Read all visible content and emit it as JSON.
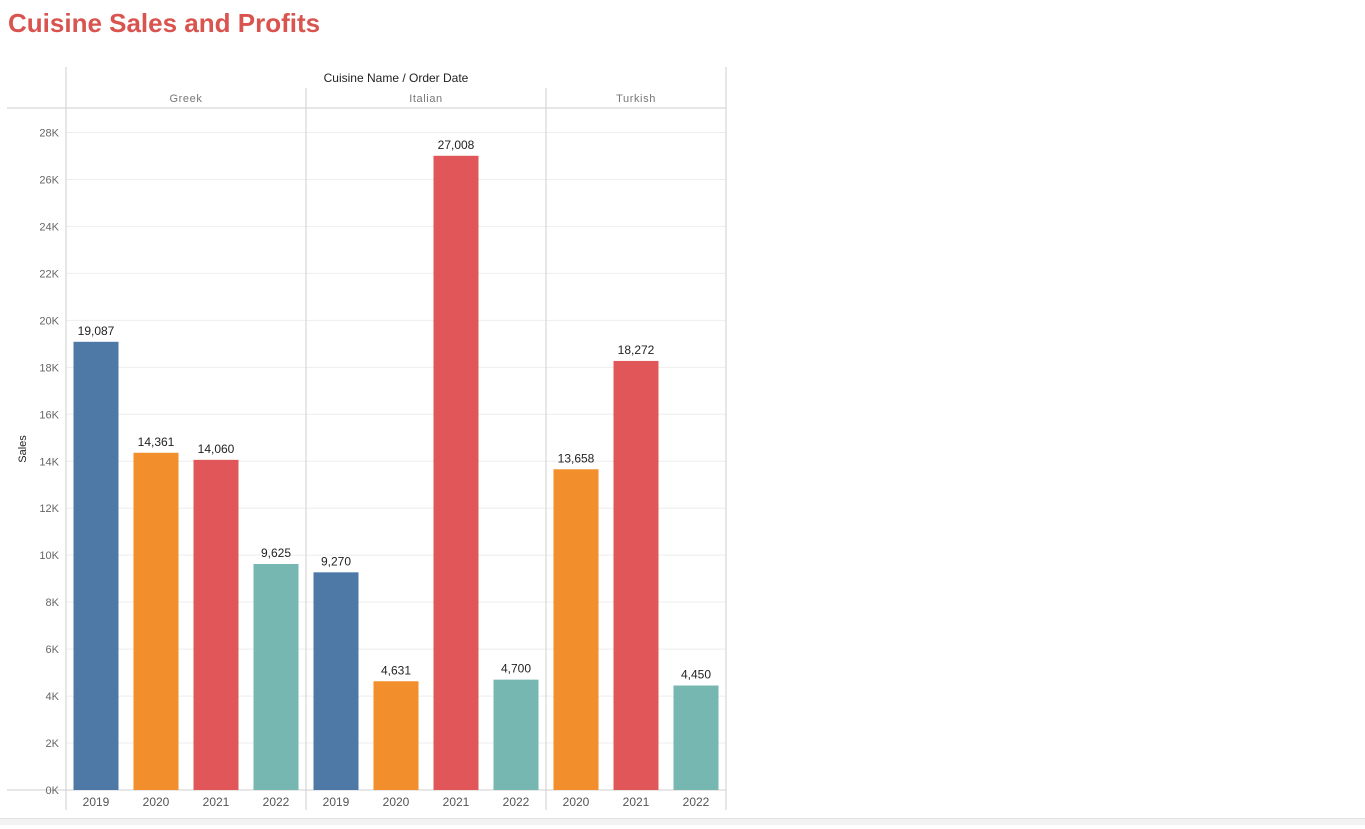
{
  "page": {
    "title": "Cuisine Sales and Profits"
  },
  "chart_data": {
    "type": "bar",
    "title": "Cuisine Sales and Profits",
    "column_header": "Cuisine Name / Order Date",
    "ylabel": "Sales",
    "xlabel": "",
    "ylim": [
      0,
      28000
    ],
    "yticks": [
      0,
      2000,
      4000,
      6000,
      8000,
      10000,
      12000,
      14000,
      16000,
      18000,
      20000,
      22000,
      24000,
      26000,
      28000
    ],
    "ytick_labels": [
      "0K",
      "2K",
      "4K",
      "6K",
      "8K",
      "10K",
      "12K",
      "14K",
      "16K",
      "18K",
      "20K",
      "22K",
      "24K",
      "26K",
      "28K"
    ],
    "grid": true,
    "year_colors": {
      "2019": "#4E79A7",
      "2020": "#F28E2B",
      "2021": "#E15759",
      "2022": "#76B7B2"
    },
    "groups": [
      {
        "name": "Greek",
        "bars": [
          {
            "year": "2019",
            "value": 19087,
            "label": "19,087"
          },
          {
            "year": "2020",
            "value": 14361,
            "label": "14,361"
          },
          {
            "year": "2021",
            "value": 14060,
            "label": "14,060"
          },
          {
            "year": "2022",
            "value": 9625,
            "label": "9,625"
          }
        ]
      },
      {
        "name": "Italian",
        "bars": [
          {
            "year": "2019",
            "value": 9270,
            "label": "9,270"
          },
          {
            "year": "2020",
            "value": 4631,
            "label": "4,631"
          },
          {
            "year": "2021",
            "value": 27008,
            "label": "27,008"
          },
          {
            "year": "2022",
            "value": 4700,
            "label": "4,700"
          }
        ]
      },
      {
        "name": "Turkish",
        "bars": [
          {
            "year": "2020",
            "value": 13658,
            "label": "13,658"
          },
          {
            "year": "2021",
            "value": 18272,
            "label": "18,272"
          },
          {
            "year": "2022",
            "value": 4450,
            "label": "4,450"
          }
        ]
      }
    ]
  }
}
